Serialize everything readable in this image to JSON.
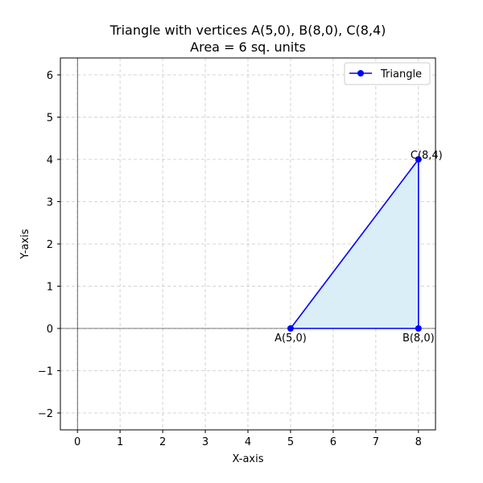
{
  "chart_data": {
    "type": "line",
    "title_line1": "Triangle with vertices A(5,0), B(8,0), C(8,4)",
    "title_line2": "Area = 6 sq. units",
    "xlabel": "X-axis",
    "ylabel": "Y-axis",
    "xlim": [
      -0.4,
      8.4
    ],
    "ylim": [
      -2.4,
      6.4
    ],
    "xticks": [
      0,
      1,
      2,
      3,
      4,
      5,
      6,
      7,
      8
    ],
    "yticks": [
      -2,
      -1,
      0,
      1,
      2,
      3,
      4,
      5,
      6
    ],
    "grid": true,
    "legend_position": "top-right",
    "series": [
      {
        "name": "Triangle",
        "x": [
          5,
          8,
          8,
          5
        ],
        "y": [
          0,
          0,
          4,
          0
        ],
        "color": "#0000ff",
        "fill_color": "#d9eef7"
      }
    ],
    "points": [
      {
        "label": "A(5,0)",
        "x": 5,
        "y": 0
      },
      {
        "label": "B(8,0)",
        "x": 8,
        "y": 0
      },
      {
        "label": "C(8,4)",
        "x": 8,
        "y": 4
      }
    ]
  }
}
